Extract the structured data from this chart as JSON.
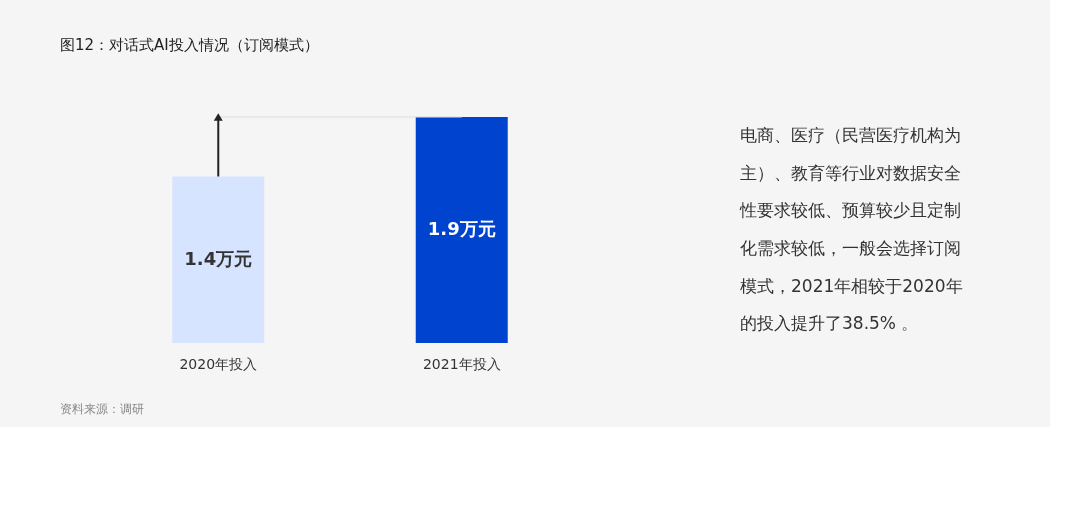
{
  "chart_data": {
    "type": "bar",
    "title": "图12：对话式AI投入情况（订阅模式）",
    "categories": [
      "2020年投入",
      "2021年投入"
    ],
    "values": [
      1.4,
      1.9
    ],
    "colors": [
      "#d6e4ff",
      "#0043ce"
    ],
    "value_labels": [
      "1.4万元",
      "1.9万元"
    ],
    "annotations": [
      "电商、医疗（民营医疗机构为主）、教育等行业对数据安全性要求较低、预算较少且定制化需求较低，一般会选择订阅模式，2021年相较于2020年的投入提升了38.5% 。",
      "资料来源：调研"
    ]
  }
}
